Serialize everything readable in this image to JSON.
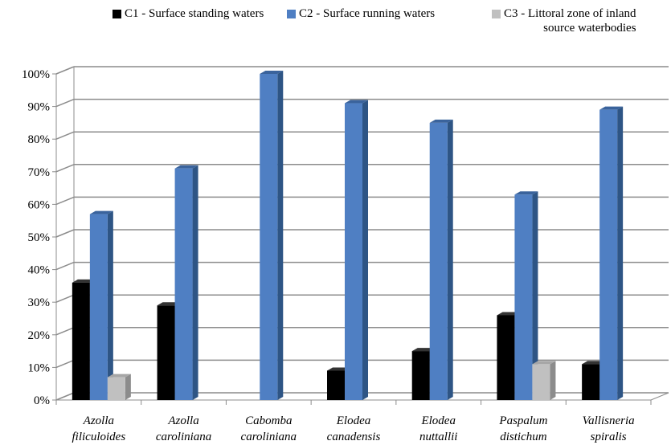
{
  "chart_data": {
    "type": "bar",
    "title": "",
    "xlabel": "",
    "ylabel": "",
    "ylim": [
      0,
      100
    ],
    "y_ticks": [
      "0%",
      "10%",
      "20%",
      "30%",
      "40%",
      "50%",
      "60%",
      "70%",
      "80%",
      "90%",
      "100%"
    ],
    "categories": [
      [
        "Azolla",
        "filiculoides"
      ],
      [
        "Azolla",
        "caroliniana"
      ],
      [
        "Cabomba",
        "caroliniana"
      ],
      [
        "Elodea",
        "canadensis"
      ],
      [
        "Elodea",
        "nuttallii"
      ],
      [
        "Paspalum",
        "distichum"
      ],
      [
        "Vallisneria",
        "spiralis"
      ]
    ],
    "series": [
      {
        "name": "C1 - Surface standing waters",
        "color": "#000000",
        "side": "#1a1a1a",
        "top": "#333333",
        "values": [
          36,
          29,
          0,
          9,
          15,
          26,
          11
        ]
      },
      {
        "name": "C2 - Surface running waters",
        "color": "#4f7fc3",
        "side": "#2e5585",
        "top": "#3a639c",
        "values": [
          57,
          71,
          100,
          91,
          85,
          63,
          89
        ]
      },
      {
        "name": "C3 - Littoral zone of inland source waterbodies",
        "name_lines": [
          "C3 - Littoral zone of inland",
          "source waterbodies"
        ],
        "color": "#c0c0c0",
        "side": "#8c8c8c",
        "top": "#a6a6a6",
        "values": [
          7,
          0,
          0,
          0,
          0,
          11,
          0
        ]
      }
    ],
    "grid": true,
    "legend_position": "top",
    "three_d": true
  }
}
